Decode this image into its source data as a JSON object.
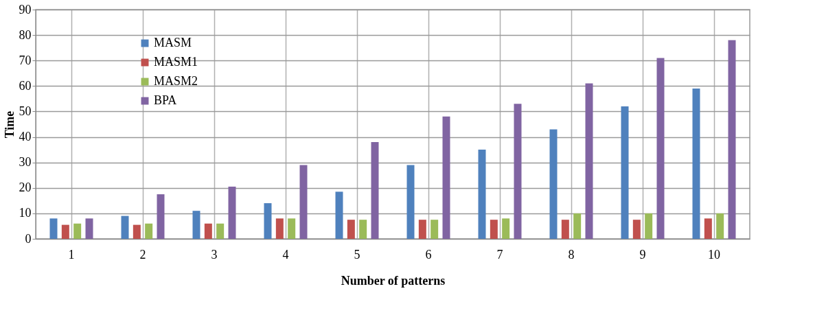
{
  "chart_data": {
    "type": "bar",
    "xlabel": "Number of patterns",
    "ylabel": "Time",
    "categories": [
      "1",
      "2",
      "3",
      "4",
      "5",
      "6",
      "7",
      "8",
      "9",
      "10"
    ],
    "series": [
      {
        "name": "MASM",
        "color": "#4f81bd",
        "values": [
          8,
          9,
          11,
          14,
          18.5,
          29,
          35,
          43,
          52,
          59
        ]
      },
      {
        "name": "MASM1",
        "color": "#c0504d",
        "values": [
          5.5,
          5.5,
          6,
          8,
          7.5,
          7.5,
          7.5,
          7.5,
          7.5,
          8
        ]
      },
      {
        "name": "MASM2",
        "color": "#9bbb59",
        "values": [
          6,
          6,
          6,
          8,
          7.5,
          7.5,
          8,
          10,
          10,
          10
        ]
      },
      {
        "name": "BPA",
        "color": "#8064a2",
        "values": [
          8,
          17.5,
          20.5,
          29,
          38,
          48,
          53,
          61,
          71,
          78
        ]
      }
    ],
    "ylim": [
      0,
      90
    ],
    "yticks": [
      0,
      10,
      20,
      30,
      40,
      50,
      60,
      70,
      80,
      90
    ],
    "grid": true,
    "legend": "top left"
  }
}
